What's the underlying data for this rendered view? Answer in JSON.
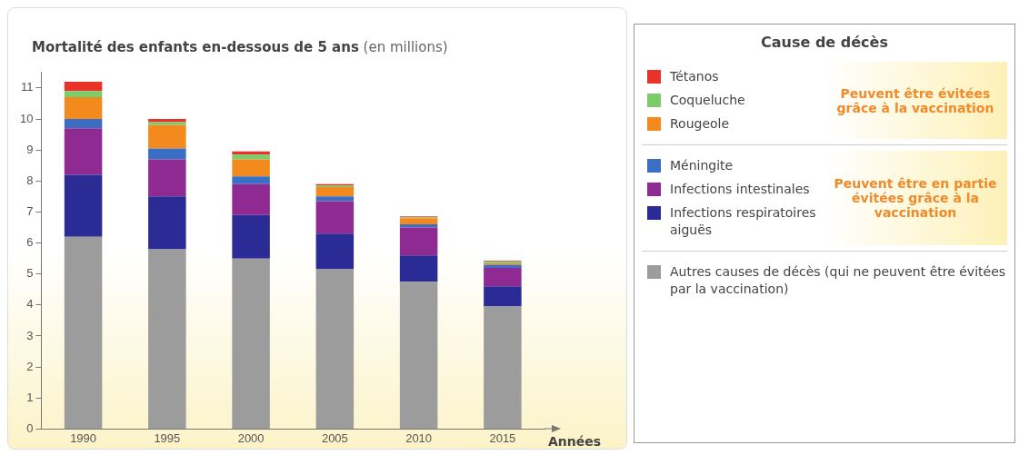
{
  "chart_data": {
    "type": "bar",
    "title": "Mortalité des enfants en-dessous de 5 ans (en millions)",
    "xlabel": "Années",
    "legend_title": "Cause de décès",
    "categories": [
      "1990",
      "1995",
      "2000",
      "2005",
      "2010",
      "2015"
    ],
    "stacked": true,
    "legend": "right",
    "grid": false,
    "ylim": [
      0,
      11.5
    ],
    "yticks": [
      0,
      1,
      2,
      3,
      4,
      5,
      6,
      7,
      8,
      9,
      10,
      11
    ],
    "series": [
      {
        "name": "Autres causes de décès (qui ne peuvent être évitées par la vaccination)",
        "color": "#9c9c9c",
        "values": [
          6.2,
          5.8,
          5.5,
          5.15,
          4.75,
          3.95
        ]
      },
      {
        "name": "Infections respiratoires aiguës",
        "color": "#2b2b96",
        "values": [
          2.0,
          1.7,
          1.4,
          1.15,
          0.85,
          0.65
        ]
      },
      {
        "name": "Infections intestinales",
        "color": "#8e2a92",
        "values": [
          1.5,
          1.2,
          1.0,
          1.05,
          0.9,
          0.6
        ]
      },
      {
        "name": "Méningite",
        "color": "#3a6fc4",
        "values": [
          0.3,
          0.35,
          0.25,
          0.15,
          0.1,
          0.1
        ]
      },
      {
        "name": "Rougeole",
        "color": "#f28a1e",
        "values": [
          0.7,
          0.75,
          0.55,
          0.3,
          0.2,
          0.05
        ]
      },
      {
        "name": "Coqueluche",
        "color": "#7ccc6c",
        "values": [
          0.2,
          0.1,
          0.15,
          0.05,
          0.03,
          0.05
        ]
      },
      {
        "name": "Tétanos",
        "color": "#e8322a",
        "values": [
          0.3,
          0.1,
          0.1,
          0.05,
          0.03,
          0.02
        ]
      }
    ],
    "annotations": [
      "Peuvent être évitées grâce à la vaccination",
      "Peuvent être en partie évitées grâce à la vaccination"
    ]
  }
}
